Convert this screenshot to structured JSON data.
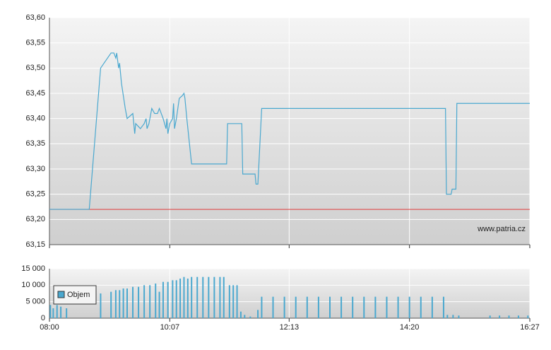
{
  "chart_data": [
    {
      "type": "line",
      "annotation": "www.patria.cz",
      "xlim": [
        "08:00",
        "16:27"
      ],
      "xticks": [
        "08:00",
        "10:07",
        "12:13",
        "14:20",
        "16:27"
      ],
      "ylim": [
        63.15,
        63.6
      ],
      "yticks": [
        {
          "value": 63.15,
          "label": "63,15"
        },
        {
          "value": 63.2,
          "label": "63,20"
        },
        {
          "value": 63.25,
          "label": "63,25"
        },
        {
          "value": 63.3,
          "label": "63,30"
        },
        {
          "value": 63.35,
          "label": "63,35"
        },
        {
          "value": 63.4,
          "label": "63,40"
        },
        {
          "value": 63.45,
          "label": "63,45"
        },
        {
          "value": 63.5,
          "label": "63,50"
        },
        {
          "value": 63.55,
          "label": "63,55"
        },
        {
          "value": 63.6,
          "label": "63,60"
        }
      ],
      "grid": true,
      "reference_line": {
        "value": 63.22,
        "color": "#e03a3a"
      },
      "x": [
        "08:00",
        "08:42",
        "08:54",
        "09:05",
        "09:08",
        "09:10",
        "09:11",
        "09:13",
        "09:14",
        "09:16",
        "09:20",
        "09:22",
        "09:28",
        "09:30",
        "09:31",
        "09:36",
        "09:40",
        "09:42",
        "09:43",
        "09:45",
        "09:48",
        "09:51",
        "09:54",
        "09:56",
        "10:00",
        "10:03",
        "10:04",
        "10:05",
        "10:07",
        "10:10",
        "10:11",
        "10:12",
        "10:14",
        "10:17",
        "10:20",
        "10:22",
        "10:23",
        "10:25",
        "10:30",
        "11:07",
        "11:08",
        "11:23",
        "11:24",
        "11:37",
        "11:38",
        "11:40",
        "11:44",
        "14:58",
        "14:59",
        "15:04",
        "15:05",
        "15:09",
        "15:10",
        "16:27"
      ],
      "series": [
        {
          "color": "#4aa8cf",
          "values": [
            63.22,
            63.22,
            63.5,
            63.53,
            63.53,
            63.52,
            63.53,
            63.5,
            63.51,
            63.47,
            63.42,
            63.4,
            63.41,
            63.37,
            63.39,
            63.38,
            63.39,
            63.4,
            63.38,
            63.39,
            63.42,
            63.41,
            63.41,
            63.42,
            63.4,
            63.38,
            63.4,
            63.37,
            63.39,
            63.4,
            63.43,
            63.38,
            63.4,
            63.44,
            63.445,
            63.45,
            63.44,
            63.4,
            63.31,
            63.31,
            63.39,
            63.39,
            63.29,
            63.29,
            63.27,
            63.27,
            63.42,
            63.42,
            63.25,
            63.25,
            63.26,
            63.26,
            63.43,
            63.43
          ]
        }
      ]
    },
    {
      "type": "bar",
      "xlim": [
        "08:00",
        "16:27"
      ],
      "xticks": [
        "08:00",
        "10:07",
        "12:13",
        "14:20",
        "16:27"
      ],
      "ylim": [
        0,
        15000
      ],
      "yticks": [
        0,
        {
          "value": 5000,
          "label": "5 000"
        },
        {
          "value": 10000,
          "label": "10 000"
        },
        {
          "value": 15000,
          "label": "15 000"
        }
      ],
      "grid": true,
      "x": [
        "08:01",
        "08:04",
        "08:08",
        "08:12",
        "08:18",
        "08:54",
        "09:05",
        "09:10",
        "09:14",
        "09:18",
        "09:22",
        "09:28",
        "09:34",
        "09:40",
        "09:46",
        "09:52",
        "09:56",
        "10:00",
        "10:05",
        "10:10",
        "10:14",
        "10:18",
        "10:22",
        "10:26",
        "10:30",
        "10:36",
        "10:42",
        "10:48",
        "10:54",
        "11:00",
        "11:04",
        "11:10",
        "11:14",
        "11:18",
        "11:22",
        "11:26",
        "11:32",
        "11:40",
        "11:44",
        "11:56",
        "12:08",
        "12:20",
        "12:32",
        "12:44",
        "12:56",
        "13:08",
        "13:20",
        "13:32",
        "13:44",
        "13:56",
        "14:08",
        "14:20",
        "14:32",
        "14:44",
        "14:56",
        "15:00",
        "15:06",
        "15:12",
        "15:45",
        "15:55",
        "16:05",
        "16:15",
        "16:25"
      ],
      "series": [
        {
          "name": "Objem",
          "color": "#4aa8cf",
          "values": [
            4000,
            3000,
            4000,
            3500,
            3000,
            7500,
            8000,
            8500,
            8500,
            9000,
            9000,
            9500,
            9500,
            10000,
            10000,
            10500,
            8000,
            11000,
            11000,
            11500,
            11500,
            12000,
            12500,
            12000,
            12500,
            12500,
            12500,
            12500,
            12500,
            12500,
            12500,
            10000,
            10000,
            10000,
            2000,
            1000,
            500,
            2500,
            6500,
            6500,
            6500,
            6500,
            6500,
            6500,
            6500,
            6500,
            6500,
            6500,
            6500,
            6500,
            6500,
            6500,
            6500,
            6500,
            6500,
            1000,
            1000,
            800,
            800,
            800,
            800,
            800,
            800
          ]
        }
      ]
    }
  ]
}
